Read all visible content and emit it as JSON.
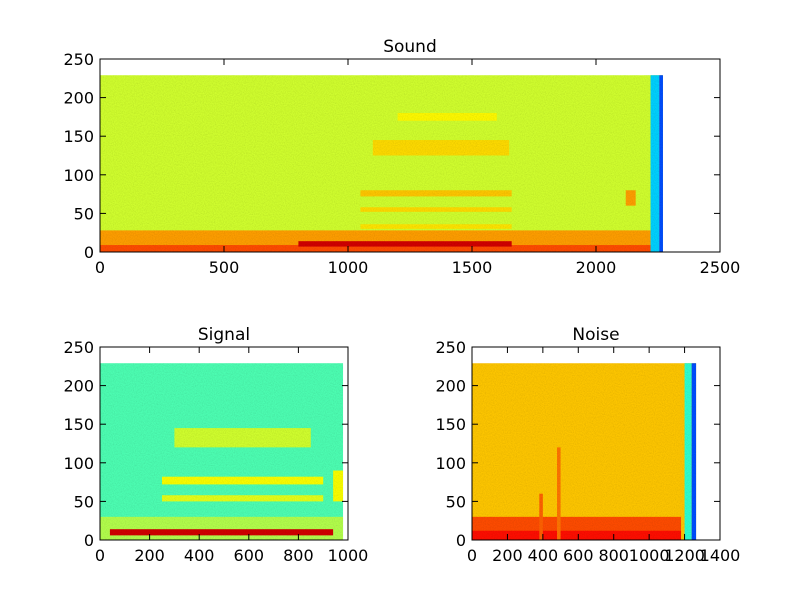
{
  "chart_data": [
    {
      "type": "heatmap",
      "title": "Sound",
      "xlim": [
        0,
        2500
      ],
      "ylim": [
        0,
        250
      ],
      "xticks": [
        0,
        500,
        1000,
        1500,
        2000,
        2500
      ],
      "yticks": [
        0,
        50,
        100,
        150,
        200,
        250
      ],
      "data_extent": {
        "x": [
          0,
          2270
        ],
        "y": [
          0,
          229
        ]
      },
      "colormap": "jet",
      "bands": [
        {
          "x": [
            0,
            2270
          ],
          "y": [
            0,
            229
          ],
          "level": 0.58
        },
        {
          "x": [
            0,
            2240
          ],
          "y": [
            0,
            28
          ],
          "level": 0.72
        },
        {
          "x": [
            0,
            2240
          ],
          "y": [
            0,
            9
          ],
          "level": 0.8
        },
        {
          "x": [
            800,
            1660
          ],
          "y": [
            7,
            14
          ],
          "level": 0.92
        },
        {
          "x": [
            1050,
            1660
          ],
          "y": [
            72,
            80
          ],
          "level": 0.68
        },
        {
          "x": [
            1050,
            1660
          ],
          "y": [
            52,
            58
          ],
          "level": 0.66
        },
        {
          "x": [
            1050,
            1660
          ],
          "y": [
            30,
            36
          ],
          "level": 0.65
        },
        {
          "x": [
            1100,
            1650
          ],
          "y": [
            125,
            145
          ],
          "level": 0.66
        },
        {
          "x": [
            1200,
            1600
          ],
          "y": [
            170,
            180
          ],
          "level": 0.63
        },
        {
          "x": [
            2120,
            2160
          ],
          "y": [
            60,
            80
          ],
          "level": 0.72
        },
        {
          "x": [
            2220,
            2255
          ],
          "y": [
            0,
            229
          ],
          "level": 0.33
        },
        {
          "x": [
            2255,
            2270
          ],
          "y": [
            0,
            229
          ],
          "level": 0.2
        }
      ]
    },
    {
      "type": "heatmap",
      "title": "Signal",
      "xlim": [
        0,
        1000
      ],
      "ylim": [
        0,
        250
      ],
      "xticks": [
        0,
        200,
        400,
        600,
        800,
        1000
      ],
      "yticks": [
        0,
        50,
        100,
        150,
        200,
        250
      ],
      "data_extent": {
        "x": [
          0,
          980
        ],
        "y": [
          0,
          229
        ]
      },
      "colormap": "jet",
      "bands": [
        {
          "x": [
            0,
            980
          ],
          "y": [
            0,
            229
          ],
          "level": 0.45
        },
        {
          "x": [
            0,
            980
          ],
          "y": [
            0,
            30
          ],
          "level": 0.55
        },
        {
          "x": [
            40,
            940
          ],
          "y": [
            6,
            14
          ],
          "level": 0.92
        },
        {
          "x": [
            250,
            900
          ],
          "y": [
            72,
            82
          ],
          "level": 0.62
        },
        {
          "x": [
            250,
            900
          ],
          "y": [
            50,
            58
          ],
          "level": 0.6
        },
        {
          "x": [
            300,
            850
          ],
          "y": [
            120,
            145
          ],
          "level": 0.58
        },
        {
          "x": [
            940,
            980
          ],
          "y": [
            50,
            90
          ],
          "level": 0.62
        }
      ]
    },
    {
      "type": "heatmap",
      "title": "Noise",
      "xlim": [
        0,
        1400
      ],
      "ylim": [
        0,
        250
      ],
      "xticks": [
        0,
        200,
        400,
        600,
        800,
        1000,
        1200,
        1400
      ],
      "yticks": [
        0,
        50,
        100,
        150,
        200,
        250
      ],
      "data_extent": {
        "x": [
          0,
          1265
        ],
        "y": [
          0,
          229
        ]
      },
      "colormap": "jet",
      "bands": [
        {
          "x": [
            0,
            1265
          ],
          "y": [
            0,
            229
          ],
          "level": 0.68
        },
        {
          "x": [
            0,
            1180
          ],
          "y": [
            0,
            30
          ],
          "level": 0.8
        },
        {
          "x": [
            0,
            1180
          ],
          "y": [
            0,
            12
          ],
          "level": 0.86
        },
        {
          "x": [
            380,
            400
          ],
          "y": [
            0,
            60
          ],
          "level": 0.78
        },
        {
          "x": [
            480,
            500
          ],
          "y": [
            0,
            120
          ],
          "level": 0.76
        },
        {
          "x": [
            1200,
            1240
          ],
          "y": [
            0,
            229
          ],
          "level": 0.42
        },
        {
          "x": [
            1240,
            1265
          ],
          "y": [
            0,
            229
          ],
          "level": 0.2
        }
      ]
    }
  ]
}
